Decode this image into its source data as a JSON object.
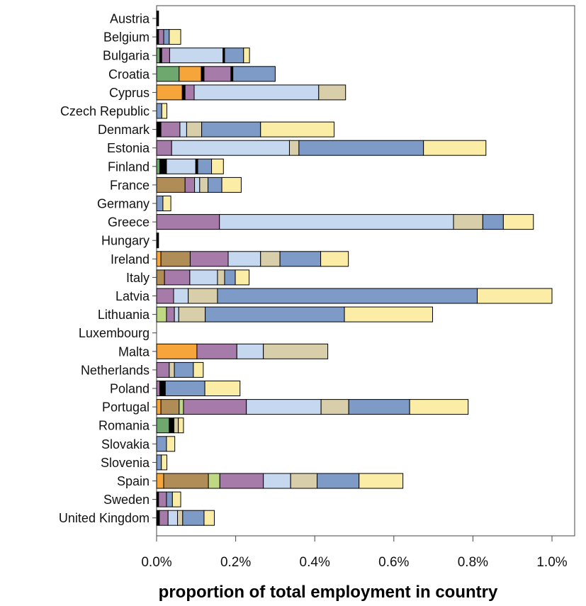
{
  "chart_data": {
    "type": "bar",
    "orientation": "horizontal",
    "stacked": true,
    "xlabel": "proportion of total employment in country",
    "xlim": [
      0,
      1.0
    ],
    "x_unit": "%",
    "x_ticks": [
      0.0,
      0.2,
      0.4,
      0.6,
      0.8,
      1.0
    ],
    "x_tick_labels": [
      "0.0%",
      "0.2%",
      "0.4%",
      "0.6%",
      "0.8%",
      "1.0%"
    ],
    "grid": false,
    "legend": "none",
    "segment_colors": [
      "#6fa86f",
      "#bed884",
      "#f5a53a",
      "#b08d57",
      "#000000",
      "#a67aa9",
      "#c5d8ef",
      "#d8ceaa",
      "#7e9bc7",
      "#fbeca6"
    ],
    "categories": [
      "Austria",
      "Belgium",
      "Bulgaria",
      "Croatia",
      "Cyprus",
      "Czech Republic",
      "Denmark",
      "Estonia",
      "Finland",
      "France",
      "Germany",
      "Greece",
      "Hungary",
      "Ireland",
      "Italy",
      "Latvia",
      "Lithuania",
      "Luxembourg",
      "Malta",
      "Netherlands",
      "Poland",
      "Portugal",
      "Romania",
      "Slovakia",
      "Slovenia",
      "Spain",
      "Sweden",
      "United Kingdom"
    ],
    "bars": [
      [
        [
          0.0,
          0.005,
          4
        ]
      ],
      [
        [
          0.0,
          0.005,
          4
        ],
        [
          0.005,
          0.018,
          5
        ],
        [
          0.018,
          0.032,
          8
        ],
        [
          0.032,
          0.061,
          9
        ]
      ],
      [
        [
          0.0,
          0.008,
          0
        ],
        [
          0.008,
          0.013,
          4
        ],
        [
          0.013,
          0.033,
          5
        ],
        [
          0.033,
          0.168,
          6
        ],
        [
          0.168,
          0.172,
          4
        ],
        [
          0.172,
          0.22,
          8
        ],
        [
          0.22,
          0.235,
          9
        ]
      ],
      [
        [
          0.0,
          0.057,
          0
        ],
        [
          0.057,
          0.113,
          2
        ],
        [
          0.113,
          0.12,
          4
        ],
        [
          0.12,
          0.188,
          5
        ],
        [
          0.188,
          0.193,
          4
        ],
        [
          0.193,
          0.3,
          8
        ]
      ],
      [
        [
          0.0,
          0.065,
          2
        ],
        [
          0.065,
          0.072,
          4
        ],
        [
          0.072,
          0.095,
          5
        ],
        [
          0.095,
          0.41,
          6
        ],
        [
          0.41,
          0.478,
          7
        ]
      ],
      [
        [
          0.0,
          0.013,
          8
        ],
        [
          0.013,
          0.026,
          9
        ]
      ],
      [
        [
          0.0,
          0.011,
          4
        ],
        [
          0.011,
          0.059,
          5
        ],
        [
          0.059,
          0.076,
          6
        ],
        [
          0.076,
          0.114,
          7
        ],
        [
          0.114,
          0.263,
          8
        ],
        [
          0.263,
          0.449,
          9
        ]
      ],
      [
        [
          0.0,
          0.038,
          5
        ],
        [
          0.038,
          0.336,
          6
        ],
        [
          0.336,
          0.36,
          7
        ],
        [
          0.36,
          0.675,
          8
        ],
        [
          0.675,
          0.833,
          9
        ]
      ],
      [
        [
          0.0,
          0.008,
          0
        ],
        [
          0.008,
          0.025,
          4
        ],
        [
          0.025,
          0.099,
          6
        ],
        [
          0.099,
          0.104,
          4
        ],
        [
          0.104,
          0.139,
          8
        ],
        [
          0.139,
          0.169,
          9
        ]
      ],
      [
        [
          0.0,
          0.072,
          3
        ],
        [
          0.072,
          0.096,
          5
        ],
        [
          0.096,
          0.109,
          6
        ],
        [
          0.109,
          0.13,
          7
        ],
        [
          0.13,
          0.165,
          8
        ],
        [
          0.165,
          0.214,
          9
        ]
      ],
      [
        [
          0.0,
          0.016,
          8
        ],
        [
          0.016,
          0.036,
          9
        ]
      ],
      [
        [
          0.0,
          0.159,
          5
        ],
        [
          0.159,
          0.751,
          6
        ],
        [
          0.751,
          0.825,
          7
        ],
        [
          0.825,
          0.877,
          8
        ],
        [
          0.877,
          0.953,
          9
        ]
      ],
      [
        [
          0.0,
          0.005,
          4
        ]
      ],
      [
        [
          0.0,
          0.011,
          2
        ],
        [
          0.011,
          0.085,
          3
        ],
        [
          0.085,
          0.181,
          5
        ],
        [
          0.181,
          0.263,
          6
        ],
        [
          0.263,
          0.312,
          7
        ],
        [
          0.312,
          0.415,
          8
        ],
        [
          0.415,
          0.485,
          9
        ]
      ],
      [
        [
          0.0,
          0.02,
          3
        ],
        [
          0.02,
          0.084,
          5
        ],
        [
          0.084,
          0.154,
          6
        ],
        [
          0.154,
          0.172,
          7
        ],
        [
          0.172,
          0.199,
          8
        ],
        [
          0.199,
          0.234,
          9
        ]
      ],
      [
        [
          0.0,
          0.043,
          5
        ],
        [
          0.043,
          0.08,
          6
        ],
        [
          0.08,
          0.154,
          7
        ],
        [
          0.154,
          0.811,
          8
        ],
        [
          0.811,
          1.0,
          9
        ]
      ],
      [
        [
          0.0,
          0.025,
          1
        ],
        [
          0.025,
          0.045,
          5
        ],
        [
          0.045,
          0.056,
          6
        ],
        [
          0.056,
          0.123,
          7
        ],
        [
          0.123,
          0.475,
          8
        ],
        [
          0.475,
          0.698,
          9
        ]
      ],
      [],
      [
        [
          0.0,
          0.102,
          2
        ],
        [
          0.102,
          0.203,
          5
        ],
        [
          0.203,
          0.27,
          6
        ],
        [
          0.27,
          0.433,
          7
        ]
      ],
      [
        [
          0.0,
          0.032,
          5
        ],
        [
          0.032,
          0.045,
          7
        ],
        [
          0.045,
          0.093,
          8
        ],
        [
          0.093,
          0.118,
          9
        ]
      ],
      [
        [
          0.0,
          0.008,
          5
        ],
        [
          0.008,
          0.022,
          4
        ],
        [
          0.022,
          0.122,
          8
        ],
        [
          0.122,
          0.211,
          9
        ]
      ],
      [
        [
          0.0,
          0.011,
          2
        ],
        [
          0.011,
          0.057,
          3
        ],
        [
          0.057,
          0.068,
          1
        ],
        [
          0.068,
          0.227,
          5
        ],
        [
          0.227,
          0.416,
          6
        ],
        [
          0.416,
          0.486,
          7
        ],
        [
          0.486,
          0.64,
          8
        ],
        [
          0.64,
          0.788,
          9
        ]
      ],
      [
        [
          0.0,
          0.032,
          0
        ],
        [
          0.032,
          0.044,
          4
        ],
        [
          0.044,
          0.055,
          7
        ],
        [
          0.055,
          0.068,
          9
        ]
      ],
      [
        [
          0.0,
          0.025,
          8
        ],
        [
          0.025,
          0.046,
          9
        ]
      ],
      [
        [
          0.0,
          0.012,
          8
        ],
        [
          0.012,
          0.026,
          9
        ]
      ],
      [
        [
          0.0,
          0.018,
          2
        ],
        [
          0.018,
          0.131,
          3
        ],
        [
          0.131,
          0.16,
          1
        ],
        [
          0.16,
          0.27,
          5
        ],
        [
          0.27,
          0.339,
          6
        ],
        [
          0.339,
          0.406,
          7
        ],
        [
          0.406,
          0.512,
          8
        ],
        [
          0.512,
          0.623,
          9
        ]
      ],
      [
        [
          0.0,
          0.005,
          4
        ],
        [
          0.005,
          0.025,
          5
        ],
        [
          0.025,
          0.04,
          8
        ],
        [
          0.04,
          0.061,
          9
        ]
      ],
      [
        [
          0.0,
          0.007,
          4
        ],
        [
          0.007,
          0.029,
          5
        ],
        [
          0.029,
          0.053,
          6
        ],
        [
          0.053,
          0.066,
          7
        ],
        [
          0.066,
          0.12,
          8
        ],
        [
          0.12,
          0.146,
          9
        ]
      ]
    ]
  }
}
